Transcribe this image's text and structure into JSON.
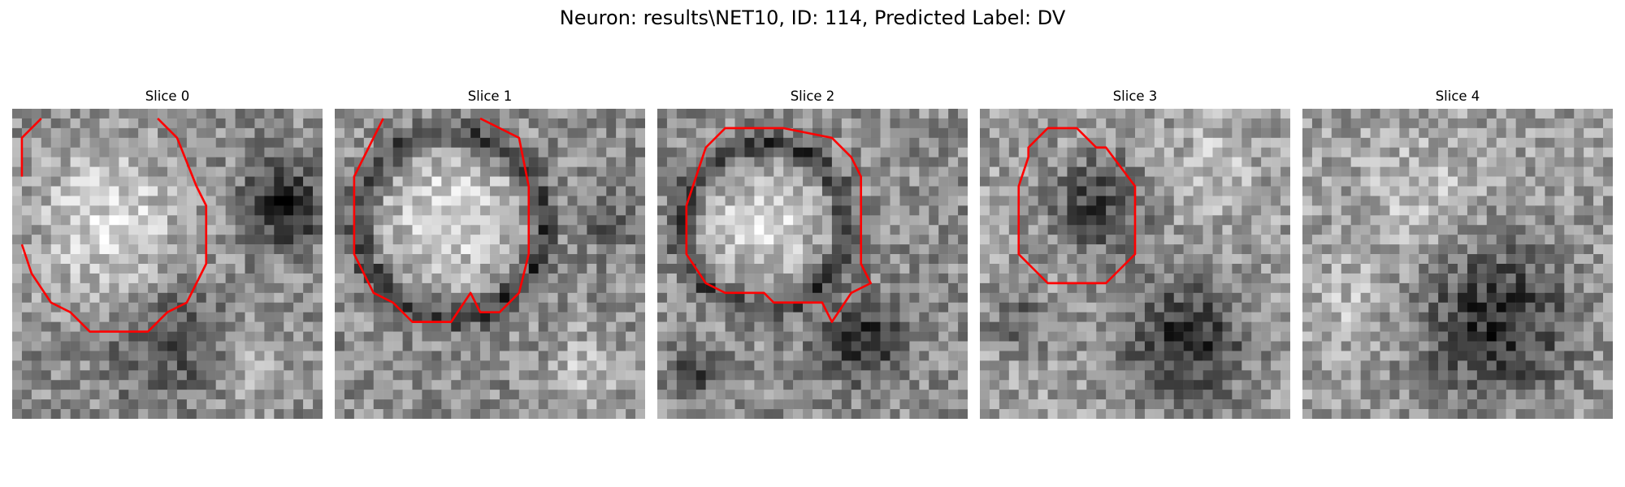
{
  "figure": {
    "title": "Neuron: results\\NET10, ID: 114, Predicted Label: DV"
  },
  "panels": [
    {
      "title": "Slice 0"
    },
    {
      "title": "Slice 1"
    },
    {
      "title": "Slice 2"
    },
    {
      "title": "Slice 3"
    },
    {
      "title": "Slice 4"
    }
  ],
  "colors": {
    "contour": "#ff0000",
    "background": "#ffffff",
    "image_colormap": "gray"
  }
}
